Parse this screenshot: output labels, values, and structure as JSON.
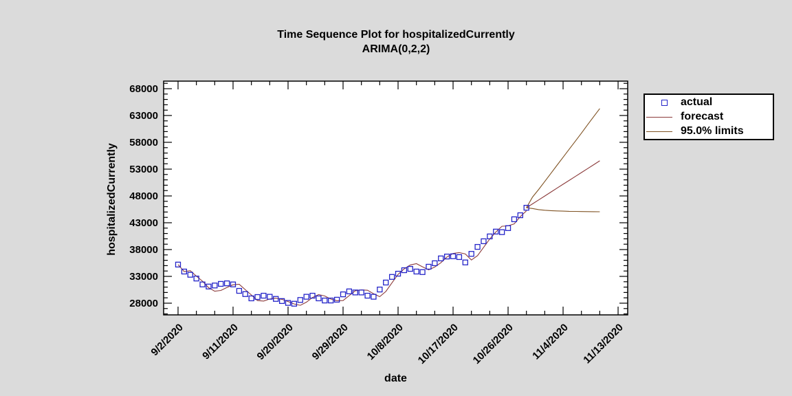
{
  "chart": {
    "title_line1": "Time Sequence Plot for hospitalizedCurrently",
    "title_line2": "ARIMA(0,2,2)",
    "xlabel": "date",
    "ylabel": "hospitalizedCurrently"
  },
  "legend": {
    "items": [
      {
        "label": "actual",
        "marker": "open-square-icon"
      },
      {
        "label": "forecast",
        "marker": "line-icon"
      },
      {
        "label": "95.0% limits",
        "marker": "line-icon"
      }
    ]
  },
  "colors": {
    "background": "#dbdbdb",
    "plot_background": "#ffffff",
    "axis": "#000000",
    "actual": "#2424c8",
    "forecast": "#8b3a3a",
    "limits": "#7f5222"
  },
  "chart_data": {
    "type": "line",
    "title": "Time Sequence Plot for hospitalizedCurrently ARIMA(0,2,2)",
    "xlabel": "date",
    "ylabel": "hospitalizedCurrently",
    "y_major_ticks": [
      28000,
      33000,
      38000,
      43000,
      48000,
      53000,
      58000,
      63000,
      68000
    ],
    "y_minor_step": 1000,
    "y_axis_range": [
      25820,
      69410
    ],
    "x_major_tick_days": [
      0,
      9,
      18,
      27,
      36,
      45,
      54,
      63,
      72
    ],
    "x_major_tick_labels": [
      "9/2/2020",
      "9/11/2020",
      "9/20/2020",
      "9/29/2020",
      "10/8/2020",
      "10/17/2020",
      "10/26/2020",
      "11/4/2020",
      "11/13/2020"
    ],
    "x_minor_step_days": 3,
    "x_axis_range_days": [
      -2.36,
      73.57
    ],
    "legend_position": "outside-right",
    "grid": false,
    "series": [
      {
        "name": "actual",
        "style": "open-square-points",
        "start_date": "9/2/2020",
        "start_day": 0,
        "values": [
          35200,
          33900,
          33300,
          32600,
          31500,
          31100,
          31300,
          31600,
          31700,
          31500,
          30300,
          29700,
          28900,
          29150,
          29400,
          29200,
          28800,
          28400,
          28050,
          27900,
          28600,
          29200,
          29400,
          28900,
          28500,
          28500,
          28650,
          29650,
          30200,
          30000,
          30000,
          29400,
          29200,
          30550,
          31850,
          32900,
          33500,
          34150,
          34400,
          33900,
          33800,
          34800,
          35450,
          36350,
          36700,
          36750,
          36600,
          35600,
          37200,
          38500,
          39550,
          40450,
          41350,
          41250,
          42000,
          43650,
          44400,
          45800
        ]
      },
      {
        "name": "forecast",
        "style": "line",
        "note": "in-sample one-step-ahead fit follows the actual series; future values below",
        "start_date": "10/30/2020",
        "start_day": 58,
        "values": [
          46530,
          47260,
          47990,
          48720,
          49450,
          50180,
          50900,
          51630,
          52360,
          53090,
          53820,
          54550
        ]
      },
      {
        "name": "upper 95.0% limit",
        "style": "line",
        "start_date": "10/30/2020",
        "start_day": 58,
        "values": [
          47800,
          49200,
          50700,
          52200,
          53700,
          55200,
          56700,
          58200,
          59700,
          61250,
          62780,
          64300
        ]
      },
      {
        "name": "lower 95.0% limit",
        "style": "line",
        "start_date": "10/30/2020",
        "start_day": 58,
        "values": [
          45650,
          45450,
          45330,
          45250,
          45200,
          45160,
          45130,
          45110,
          45090,
          45080,
          45070,
          45050
        ]
      }
    ]
  }
}
